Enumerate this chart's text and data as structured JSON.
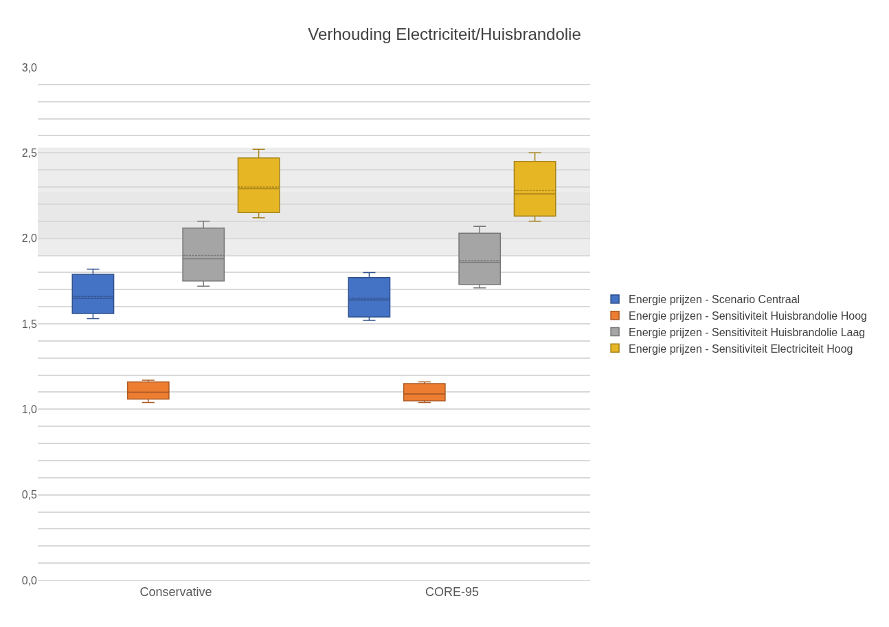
{
  "chart_data": {
    "type": "box",
    "title": "Verhouding Electriciteit/Huisbrandolie",
    "categories": [
      "Conservative",
      "CORE-95"
    ],
    "series": [
      {
        "name": "Energie prijzen - Scenario Centraal",
        "color": "#4472c4",
        "boxes": [
          {
            "low": 1.53,
            "q1": 1.56,
            "median": 1.65,
            "q3": 1.79,
            "high": 1.82,
            "mean": 1.66
          },
          {
            "low": 1.52,
            "q1": 1.54,
            "median": 1.64,
            "q3": 1.77,
            "high": 1.8,
            "mean": 1.65
          }
        ]
      },
      {
        "name": "Energie prijzen - Sensitiviteit Huisbrandolie Hoog",
        "color": "#ed7d31",
        "boxes": [
          {
            "low": 1.04,
            "q1": 1.06,
            "median": 1.1,
            "q3": 1.16,
            "high": 1.17,
            "mean": 1.1
          },
          {
            "low": 1.04,
            "q1": 1.05,
            "median": 1.09,
            "q3": 1.15,
            "high": 1.16,
            "mean": 1.09
          }
        ]
      },
      {
        "name": "Energie prijzen - Sensitiviteit Huisbrandolie Laag",
        "color": "#a5a5a5",
        "boxes": [
          {
            "low": 1.72,
            "q1": 1.75,
            "median": 1.88,
            "q3": 2.06,
            "high": 2.1,
            "mean": 1.9
          },
          {
            "low": 1.71,
            "q1": 1.73,
            "median": 1.86,
            "q3": 2.03,
            "high": 2.07,
            "mean": 1.87
          }
        ]
      },
      {
        "name": "Energie prijzen - Sensitiviteit Electriciteit Hoog",
        "color": "#e6b625",
        "boxes": [
          {
            "low": 2.12,
            "q1": 2.15,
            "median": 2.29,
            "q3": 2.47,
            "high": 2.52,
            "mean": 2.3
          },
          {
            "low": 2.1,
            "q1": 2.13,
            "median": 2.26,
            "q3": 2.45,
            "high": 2.5,
            "mean": 2.28
          }
        ]
      }
    ],
    "bands": [
      {
        "axis": "y",
        "from": 1.9,
        "to": 2.27,
        "color": "#e6e6e6"
      },
      {
        "axis": "y",
        "from": 2.0,
        "to": 2.53,
        "color": "#e6e6e6"
      }
    ],
    "ylim": [
      0,
      3
    ],
    "yticks": [
      {
        "value": 0,
        "label": "0,0"
      },
      {
        "value": 0.1,
        "label": null
      },
      {
        "value": 0.2,
        "label": null
      },
      {
        "value": 0.3,
        "label": null
      },
      {
        "value": 0.4,
        "label": null
      },
      {
        "value": 0.5,
        "label": "0,5"
      },
      {
        "value": 0.6,
        "label": null
      },
      {
        "value": 0.7,
        "label": null
      },
      {
        "value": 0.8,
        "label": null
      },
      {
        "value": 0.9,
        "label": null
      },
      {
        "value": 1,
        "label": "1,0"
      },
      {
        "value": 1.1,
        "label": null
      },
      {
        "value": 1.2,
        "label": null
      },
      {
        "value": 1.3,
        "label": null
      },
      {
        "value": 1.4,
        "label": null
      },
      {
        "value": 1.5,
        "label": "1,5"
      },
      {
        "value": 1.6,
        "label": null
      },
      {
        "value": 1.7,
        "label": null
      },
      {
        "value": 1.8,
        "label": null
      },
      {
        "value": 1.9,
        "label": null
      },
      {
        "value": 2,
        "label": "2,0"
      },
      {
        "value": 2.1,
        "label": null
      },
      {
        "value": 2.2,
        "label": null
      },
      {
        "value": 2.3,
        "label": null
      },
      {
        "value": 2.4,
        "label": null
      },
      {
        "value": 2.5,
        "label": "2,5"
      },
      {
        "value": 2.6,
        "label": null
      },
      {
        "value": 2.7,
        "label": null
      },
      {
        "value": 2.8,
        "label": null
      },
      {
        "value": 2.9,
        "label": null
      },
      {
        "value": 3,
        "label": "3,0"
      }
    ],
    "grid": "y",
    "legend": "right"
  }
}
